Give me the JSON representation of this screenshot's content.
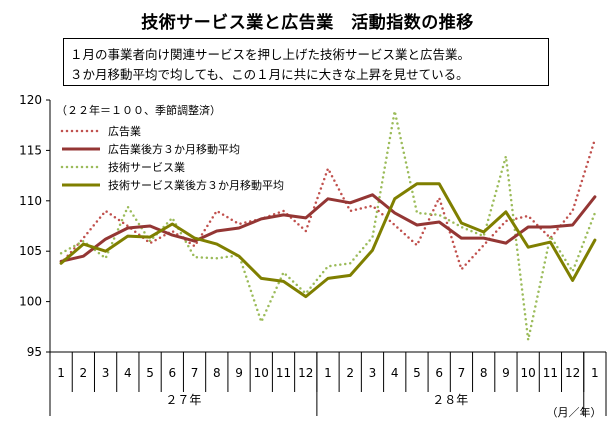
{
  "title": "技術サービス業と広告業　活動指数の推移",
  "subtitle": [
    "１月の事業者向け関連サービスを押し上げた技術サービス業と広告業。",
    "３か月移動平均で均しても、この１月に共に大きな上昇を見せている。"
  ],
  "chart_data": {
    "type": "line",
    "note": "（２２年＝１００、季節調整済）",
    "x_months": [
      "1",
      "2",
      "3",
      "4",
      "5",
      "6",
      "7",
      "8",
      "9",
      "10",
      "11",
      "12",
      "1",
      "2",
      "3",
      "4",
      "5",
      "6",
      "7",
      "8",
      "9",
      "10",
      "11",
      "12",
      "1"
    ],
    "x_years": [
      {
        "label": "２７年",
        "start": 0,
        "end": 11
      },
      {
        "label": "２８年",
        "start": 12,
        "end": 23
      }
    ],
    "x_unit": "（月／年）",
    "ylim": [
      95,
      120
    ],
    "yticks": [
      95,
      100,
      105,
      110,
      115,
      120
    ],
    "grid": false,
    "legend_position": "top-left",
    "series": [
      {
        "name": "広告業",
        "color": "#c0504d",
        "style": "dotted",
        "values": [
          103.8,
          106.3,
          109.0,
          107.5,
          105.8,
          107.0,
          105.5,
          109.0,
          107.7,
          108.2,
          109.0,
          107.0,
          113.2,
          109.0,
          109.5,
          107.6,
          105.6,
          110.3,
          103.2,
          105.6,
          108.0,
          108.5,
          106.3,
          109.0,
          116.1
        ]
      },
      {
        "name": "広告業後方３か月移動平均",
        "color": "#943634",
        "style": "solid",
        "values": [
          104.0,
          104.5,
          106.2,
          107.3,
          107.5,
          106.6,
          106.0,
          107.0,
          107.3,
          108.2,
          108.6,
          108.3,
          110.2,
          109.8,
          110.6,
          108.8,
          107.6,
          107.9,
          106.3,
          106.3,
          105.8,
          107.4,
          107.4,
          107.6,
          110.4
        ]
      },
      {
        "name": "技術サービス業",
        "color": "#9bbb59",
        "style": "dotted",
        "values": [
          104.8,
          106.0,
          104.3,
          109.4,
          106.0,
          108.3,
          104.4,
          104.3,
          104.6,
          98.0,
          102.9,
          100.8,
          103.5,
          103.8,
          106.4,
          118.9,
          108.8,
          108.6,
          107.4,
          106.5,
          114.4,
          96.2,
          106.5,
          103.0,
          108.8
        ]
      },
      {
        "name": "技術サービス業後方３か月移動平均",
        "color": "#7f7f00",
        "style": "solid",
        "values": [
          103.8,
          105.7,
          105.0,
          106.5,
          106.4,
          107.7,
          106.3,
          105.7,
          104.5,
          102.3,
          102.0,
          100.5,
          102.3,
          102.6,
          105.1,
          110.2,
          111.7,
          111.7,
          107.8,
          106.9,
          108.9,
          105.4,
          105.9,
          102.1,
          106.1
        ]
      }
    ]
  }
}
